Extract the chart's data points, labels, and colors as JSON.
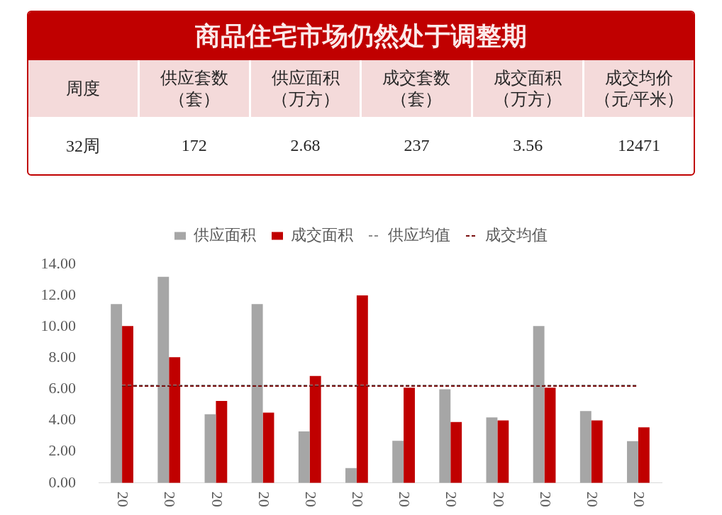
{
  "chart_data": [
    {
      "type": "other",
      "title": "商品住宅市场仍然处于调整期",
      "ylabel": "周度",
      "y_categories": [
        "32周"
      ],
      "categories": [
        "供应套数（套）",
        "供应面积（万方）",
        "成交套数（套）",
        "成交面积（万方）",
        "成交均价（元/平米）"
      ],
      "values": [
        172,
        2.68,
        237,
        3.56,
        12471
      ],
      "data_labels": true
    },
    {
      "type": "bar",
      "categories": [
        "20",
        "20",
        "20",
        "20",
        "20",
        "20",
        "20",
        "20",
        "20",
        "20",
        "20",
        "20"
      ],
      "series": [
        {
          "name": "供应面积",
          "color": "#a6a6a6",
          "values": [
            11.45,
            13.2,
            4.4,
            11.45,
            3.3,
            0.95,
            2.7,
            6.0,
            4.2,
            10.05,
            4.6,
            2.68
          ]
        },
        {
          "name": "成交面积",
          "color": "#c00000",
          "values": [
            10.05,
            8.05,
            5.25,
            4.5,
            6.85,
            12.0,
            6.1,
            3.9,
            4.0,
            6.1,
            4.0,
            3.56
          ]
        },
        {
          "name": "供应均值",
          "type": "line",
          "color": "#8c8c8c",
          "line_style": "dashed",
          "values": [
            6.25,
            6.25,
            6.25,
            6.25,
            6.25,
            6.25,
            6.25,
            6.25,
            6.25,
            6.25,
            6.25,
            6.25
          ]
        },
        {
          "name": "成交均值",
          "type": "line",
          "color": "#7a1010",
          "line_style": "dashed",
          "values": [
            6.2,
            6.2,
            6.2,
            6.2,
            6.2,
            6.2,
            6.2,
            6.2,
            6.2,
            6.2,
            6.2,
            6.2
          ]
        }
      ],
      "ylim": [
        0,
        14
      ],
      "yticks": [
        {
          "value": 0,
          "label": "0.00"
        },
        {
          "value": 2,
          "label": "2.00"
        },
        {
          "value": 4,
          "label": "4.00"
        },
        {
          "value": 6,
          "label": "6.00"
        },
        {
          "value": 8,
          "label": "8.00"
        },
        {
          "value": 10,
          "label": "10.00"
        },
        {
          "value": 12,
          "label": "12.00"
        },
        {
          "value": 14,
          "label": "14.00"
        }
      ],
      "grid": false,
      "legend": "top",
      "marker": "none"
    }
  ]
}
